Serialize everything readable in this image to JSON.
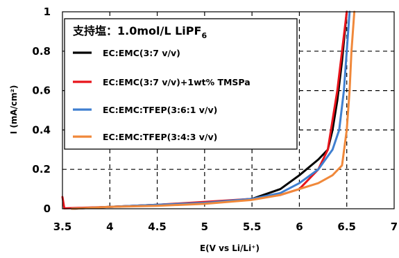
{
  "chart_data": {
    "type": "line",
    "xlabel": "E(V vs Li/Li⁺)",
    "ylabel": "I (mA/cm²)",
    "xlim": [
      3.5,
      7
    ],
    "ylim": [
      0,
      1
    ],
    "x_ticks": [
      "3.5",
      "4",
      "4.5",
      "5",
      "5.5",
      "6",
      "6.5",
      "7"
    ],
    "y_ticks": [
      "0",
      "0.2",
      "0.4",
      "0.6",
      "0.8",
      "1"
    ],
    "grid": "dashed",
    "legend_position": "top-left",
    "legend_title": "支持塩：1.0mol/L LiPF",
    "legend_title_subscript": "6",
    "series": [
      {
        "name": "EC:EMC(3:7 v/v)",
        "color": "#000000",
        "points": [
          [
            3.6,
            0
          ],
          [
            4,
            0.01
          ],
          [
            4.5,
            0.02
          ],
          [
            5,
            0.03
          ],
          [
            5.5,
            0.05
          ],
          [
            5.8,
            0.1
          ],
          [
            6,
            0.17
          ],
          [
            6.2,
            0.25
          ],
          [
            6.3,
            0.3
          ],
          [
            6.35,
            0.4
          ],
          [
            6.4,
            0.55
          ],
          [
            6.45,
            0.75
          ],
          [
            6.5,
            1.0
          ]
        ]
      },
      {
        "name": "EC:EMC(3:7 v/v)+1wt% TMSPa",
        "color": "#e8141b",
        "points": [
          [
            3.5,
            0.06
          ],
          [
            3.52,
            0.002
          ],
          [
            4,
            0.01
          ],
          [
            4.5,
            0.02
          ],
          [
            5,
            0.035
          ],
          [
            5.5,
            0.05
          ],
          [
            5.8,
            0.07
          ],
          [
            6,
            0.1
          ],
          [
            6.2,
            0.2
          ],
          [
            6.3,
            0.3
          ],
          [
            6.35,
            0.45
          ],
          [
            6.4,
            0.6
          ],
          [
            6.45,
            0.8
          ],
          [
            6.5,
            1.0
          ]
        ]
      },
      {
        "name": "EC:EMC:TFEP(3:6:1 v/v)",
        "color": "#3f7fd0",
        "points": [
          [
            3.6,
            0
          ],
          [
            4,
            0.01
          ],
          [
            4.5,
            0.02
          ],
          [
            5,
            0.03
          ],
          [
            5.5,
            0.05
          ],
          [
            5.8,
            0.08
          ],
          [
            6,
            0.13
          ],
          [
            6.2,
            0.2
          ],
          [
            6.35,
            0.3
          ],
          [
            6.42,
            0.4
          ],
          [
            6.47,
            0.6
          ],
          [
            6.5,
            0.8
          ],
          [
            6.53,
            1.0
          ]
        ]
      },
      {
        "name": "EC:EMC:TFEP(3:4:3 v/v)",
        "color": "#f0883a",
        "points": [
          [
            3.6,
            0
          ],
          [
            4,
            0.01
          ],
          [
            4.5,
            0.015
          ],
          [
            5,
            0.025
          ],
          [
            5.5,
            0.045
          ],
          [
            5.8,
            0.07
          ],
          [
            6,
            0.1
          ],
          [
            6.2,
            0.13
          ],
          [
            6.35,
            0.17
          ],
          [
            6.45,
            0.22
          ],
          [
            6.5,
            0.4
          ],
          [
            6.53,
            0.6
          ],
          [
            6.55,
            0.8
          ],
          [
            6.58,
            1.0
          ]
        ]
      }
    ]
  }
}
